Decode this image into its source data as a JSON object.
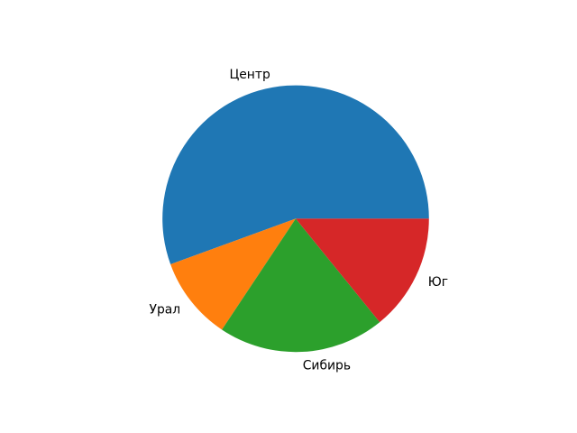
{
  "chart_data": {
    "type": "pie",
    "title": "",
    "labels": [
      "Центр",
      "Урал",
      "Сибирь",
      "Юг"
    ],
    "values": [
      55,
      10,
      20,
      14
    ],
    "percentages": [
      55.6,
      10.1,
      20.2,
      14.1
    ],
    "colors": [
      "#1f77b4",
      "#ff7f0e",
      "#2ca02c",
      "#d62728"
    ],
    "startangle": 0,
    "counterclock": true,
    "labeldistance": 1.1,
    "legend": "none",
    "grid": "off",
    "background": "#ffffff",
    "label_color": "#000000"
  }
}
